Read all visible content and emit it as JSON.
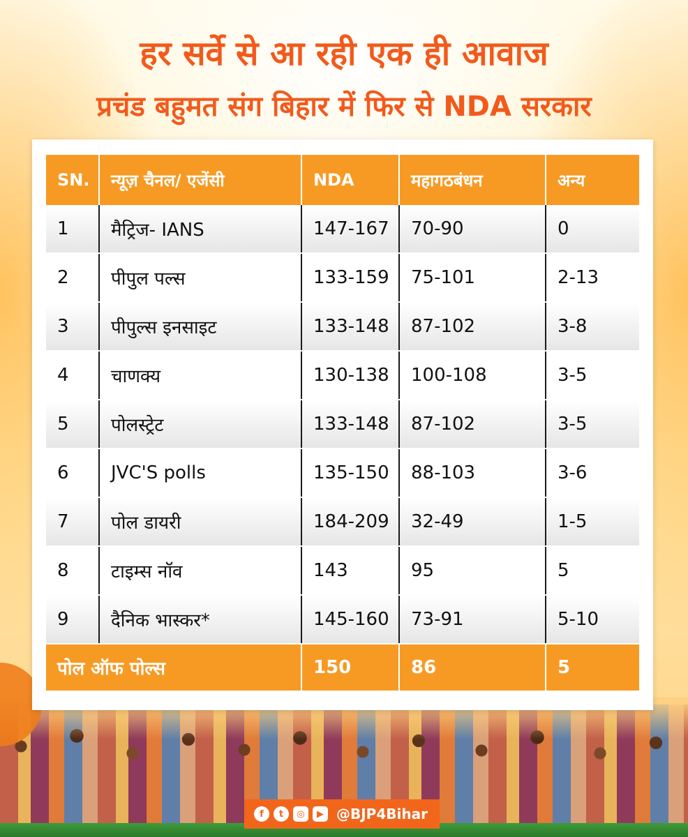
{
  "header": {
    "title_line1": "हर सर्वे से आ रही एक ही आवाज",
    "title_line2": "प्रचंड बहुमत संग बिहार में फिर से NDA सरकार"
  },
  "table": {
    "headers": [
      "SN.",
      "न्यूज़ चैनल/ एजेंसी",
      "NDA",
      "महागठबंधन",
      "अन्य"
    ],
    "rows": [
      [
        "1",
        "मैट्रिज- IANS",
        "147-167",
        "70-90",
        "0"
      ],
      [
        "2",
        "पीपुल पल्स",
        "133-159",
        "75-101",
        "2-13"
      ],
      [
        "3",
        "पीपुल्स इनसाइट",
        "133-148",
        "87-102",
        "3-8"
      ],
      [
        "4",
        "चाणक्य",
        "130-138",
        "100-108",
        "3-5"
      ],
      [
        "5",
        "पोलस्ट्रेट",
        "133-148",
        "87-102",
        "3-5"
      ],
      [
        "6",
        "JVC'S polls",
        "135-150",
        "88-103",
        "3-6"
      ],
      [
        "7",
        "पोल डायरी",
        "184-209",
        "32-49",
        "1-5"
      ],
      [
        "8",
        "टाइम्स नॉव",
        "143",
        "95",
        "5"
      ],
      [
        "9",
        "दैनिक भास्कर*",
        "145-160",
        "73-91",
        "5-10"
      ]
    ],
    "footer": [
      "पोल ऑफ पोल्स",
      "150",
      "86",
      "5"
    ]
  },
  "social": {
    "icons": [
      "facebook-icon",
      "twitter-icon",
      "instagram-icon",
      "youtube-icon"
    ],
    "handle": "@BJP4Bihar"
  },
  "colors": {
    "title": "#f25a1c",
    "header_bg": "#f79a24",
    "social_bg": "#f2661c"
  }
}
